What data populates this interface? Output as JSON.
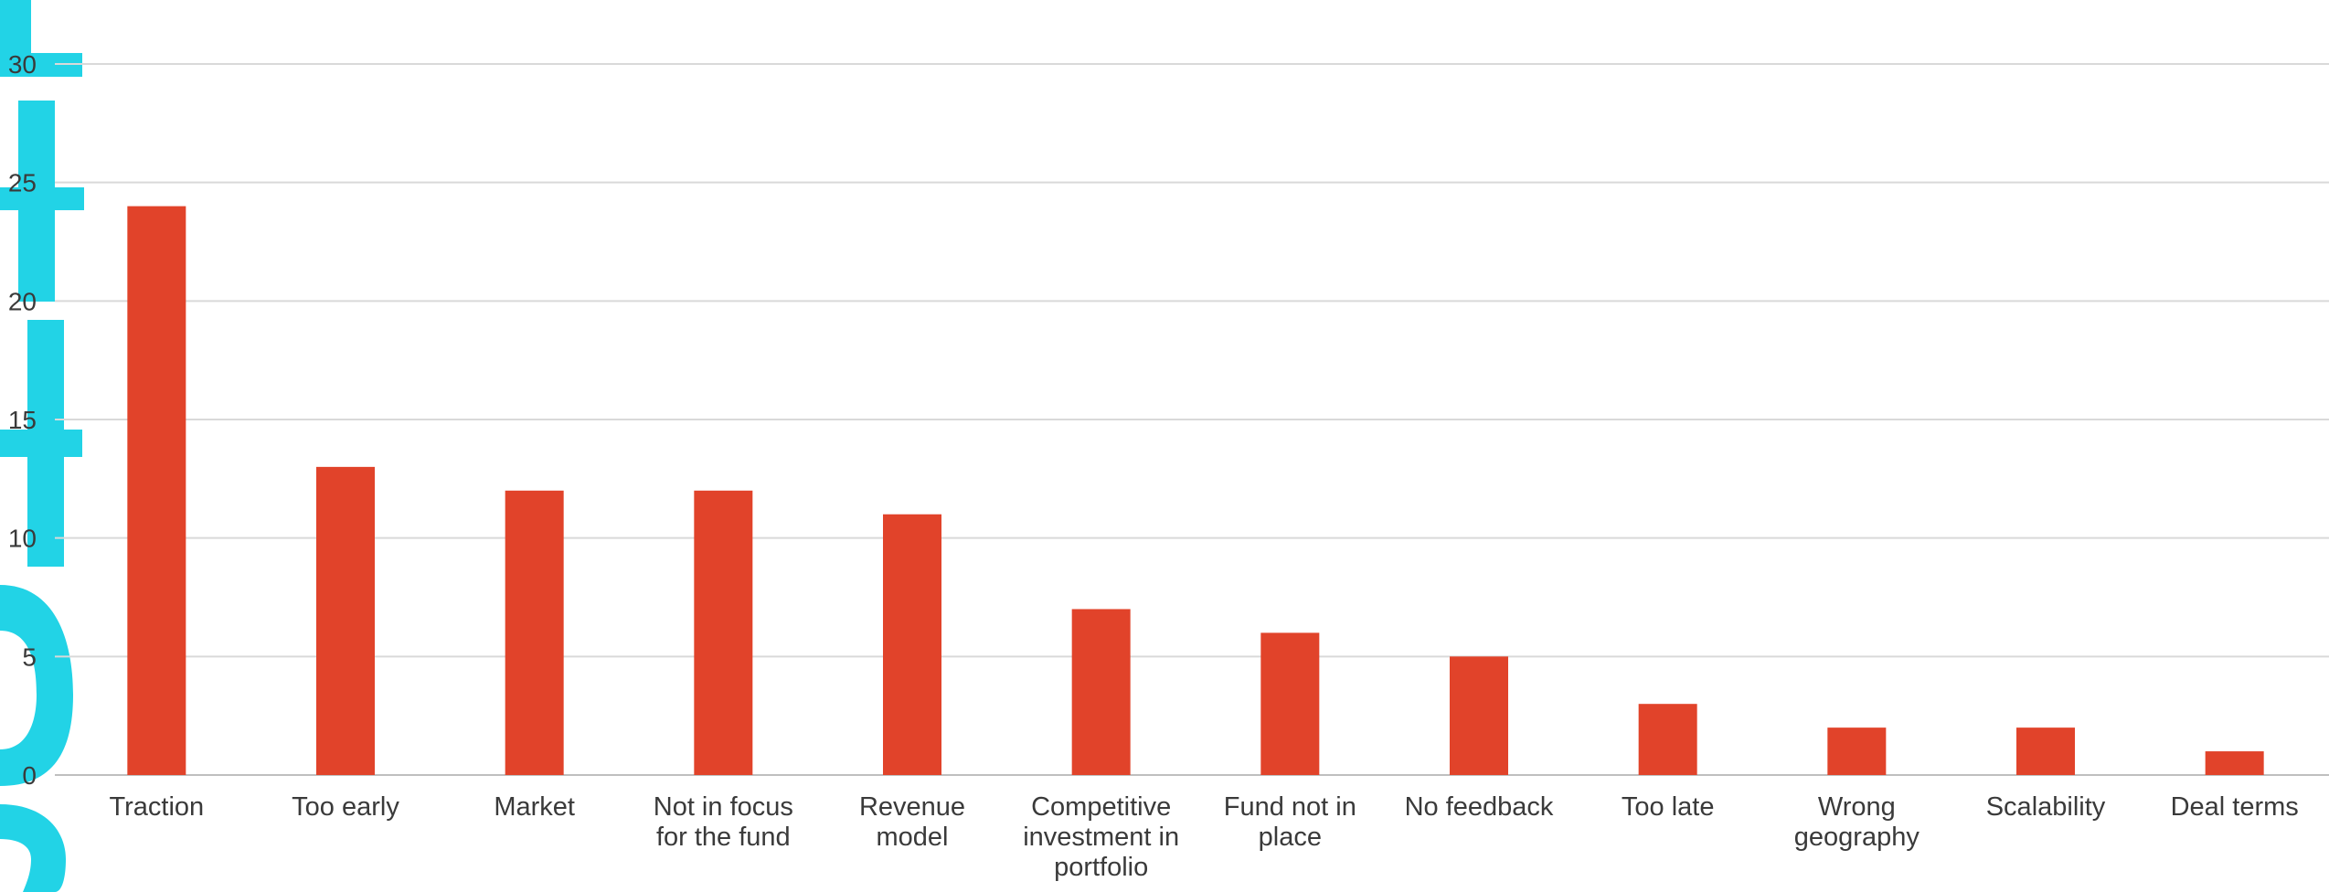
{
  "chart_data": {
    "type": "bar",
    "categories": [
      [
        "Traction"
      ],
      [
        "Too early"
      ],
      [
        "Market"
      ],
      [
        "Not in focus",
        "for the fund"
      ],
      [
        "Revenue",
        "model"
      ],
      [
        "Competitive",
        "investment in",
        "portfolio"
      ],
      [
        "Fund not in",
        "place"
      ],
      [
        "No feedback"
      ],
      [
        "Too late"
      ],
      [
        "Wrong",
        "geography"
      ],
      [
        "Scalability"
      ],
      [
        "Deal terms"
      ]
    ],
    "values": [
      24,
      13,
      12,
      12,
      11,
      7,
      6,
      5,
      3,
      2,
      2,
      1
    ],
    "title": "",
    "xlabel": "",
    "ylabel": "",
    "ylim": [
      0,
      30
    ],
    "yticks": [
      "0",
      "5",
      "10",
      "15",
      "20",
      "25",
      "30"
    ],
    "grid": true,
    "bar_color": "#e1432a",
    "watermark_color": "#22d3e6"
  }
}
